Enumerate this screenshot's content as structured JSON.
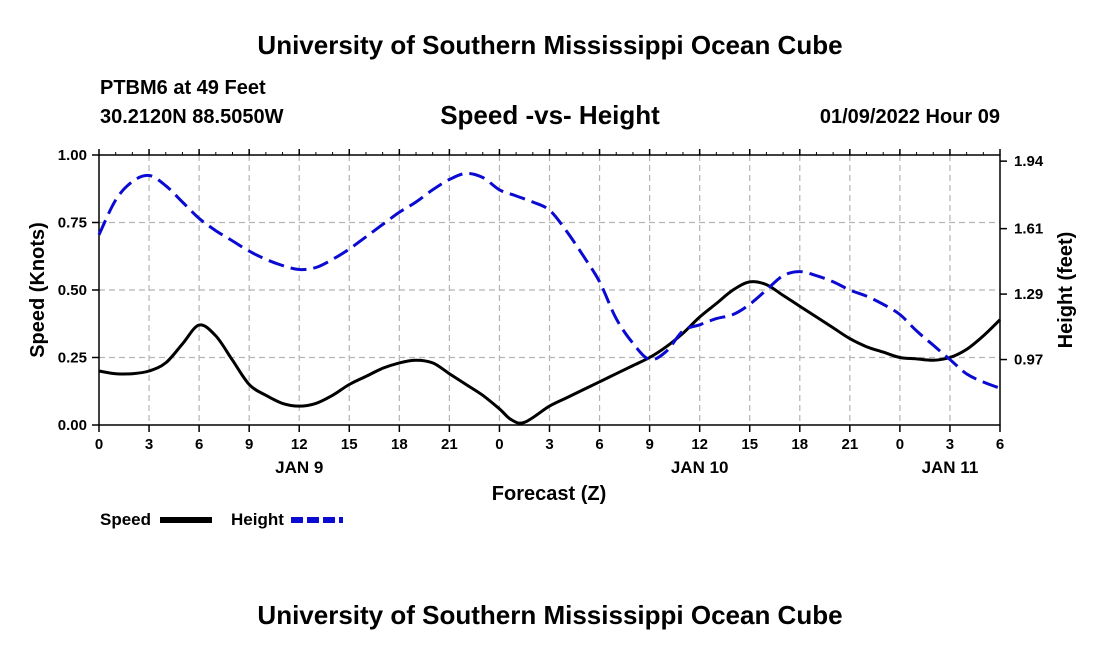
{
  "page": {
    "title_top": "University of Southern Mississippi Ocean Cube",
    "title_bottom": "University of Southern Mississippi Ocean Cube",
    "station": "PTBM6 at 49 Feet",
    "coords": "30.2120N  88.5050W",
    "datetime": "01/09/2022 Hour 09"
  },
  "colors": {
    "speed": "#000000",
    "height": "#0a0ad2",
    "grid": "#b4b4b4"
  },
  "chart_data": {
    "type": "line",
    "title": "Speed -vs- Height",
    "xlabel": "Forecast (Z)",
    "ylabel_left": "Speed (Knots)",
    "ylabel_right": "Height (feet)",
    "x_tick_labels": [
      "0",
      "3",
      "6",
      "9",
      "12",
      "15",
      "18",
      "21",
      "0",
      "3",
      "6",
      "9",
      "12",
      "15",
      "18",
      "21",
      "0",
      "3",
      "6"
    ],
    "x_tick_hours": [
      0,
      3,
      6,
      9,
      12,
      15,
      18,
      21,
      24,
      27,
      30,
      33,
      36,
      39,
      42,
      45,
      48,
      51,
      54
    ],
    "date_labels": [
      {
        "label": "JAN 9",
        "hour": 12
      },
      {
        "label": "JAN 10",
        "hour": 36
      },
      {
        "label": "JAN 11",
        "hour": 51
      }
    ],
    "xlim": [
      0,
      54
    ],
    "ylim_left": [
      0,
      1
    ],
    "y_left_ticks": [
      "0.00",
      "0.25",
      "0.50",
      "0.75",
      "1.00"
    ],
    "y_left_values": [
      0,
      0.25,
      0.5,
      0.75,
      1.0
    ],
    "ylim_right": [
      0.65,
      1.97
    ],
    "y_right_ticks": [
      "0.97",
      "1.29",
      "1.61",
      "1.94"
    ],
    "y_right_values": [
      0.97,
      1.29,
      1.61,
      1.94
    ],
    "series": [
      {
        "name": "Speed",
        "axis": "left",
        "style": "solid",
        "x": [
          0,
          1,
          2,
          3,
          4,
          5,
          6,
          7,
          8,
          9,
          10,
          11,
          12,
          13,
          14,
          15,
          16,
          17,
          18,
          19,
          20,
          21,
          22,
          23,
          24,
          24.7,
          25.5,
          27,
          28,
          29,
          30,
          31,
          32,
          33,
          34,
          35,
          36,
          37,
          38,
          39,
          40,
          41,
          42,
          43,
          44,
          45,
          46,
          47,
          48,
          49,
          50,
          51,
          52,
          53,
          54
        ],
        "values": [
          0.2,
          0.19,
          0.19,
          0.2,
          0.23,
          0.3,
          0.37,
          0.33,
          0.24,
          0.15,
          0.11,
          0.08,
          0.07,
          0.08,
          0.11,
          0.15,
          0.18,
          0.21,
          0.23,
          0.24,
          0.23,
          0.19,
          0.15,
          0.11,
          0.06,
          0.02,
          0.01,
          0.07,
          0.1,
          0.13,
          0.16,
          0.19,
          0.22,
          0.25,
          0.29,
          0.34,
          0.4,
          0.45,
          0.5,
          0.53,
          0.52,
          0.48,
          0.44,
          0.4,
          0.36,
          0.32,
          0.29,
          0.27,
          0.25,
          0.245,
          0.24,
          0.25,
          0.28,
          0.33,
          0.39
        ]
      },
      {
        "name": "Height",
        "axis": "right",
        "style": "dashed",
        "x": [
          0,
          1,
          2,
          3,
          4,
          5,
          6,
          7,
          8,
          9,
          10,
          11,
          12,
          13,
          14,
          15,
          16,
          17,
          18,
          19,
          20,
          21,
          22,
          23,
          24,
          25,
          26,
          27,
          28,
          29,
          30,
          31,
          32,
          33,
          34,
          35,
          36,
          37,
          38,
          39,
          40,
          41,
          42,
          43,
          44,
          45,
          46,
          47,
          48,
          49,
          50,
          51,
          52,
          53,
          54
        ],
        "values": [
          1.58,
          1.75,
          1.84,
          1.87,
          1.82,
          1.74,
          1.66,
          1.6,
          1.55,
          1.5,
          1.46,
          1.43,
          1.41,
          1.42,
          1.46,
          1.51,
          1.57,
          1.63,
          1.69,
          1.74,
          1.8,
          1.85,
          1.88,
          1.86,
          1.8,
          1.77,
          1.74,
          1.7,
          1.6,
          1.48,
          1.35,
          1.17,
          1.05,
          0.97,
          1.01,
          1.11,
          1.14,
          1.17,
          1.19,
          1.24,
          1.31,
          1.38,
          1.4,
          1.38,
          1.35,
          1.31,
          1.28,
          1.24,
          1.19,
          1.11,
          1.04,
          0.97,
          0.9,
          0.86,
          0.83
        ]
      }
    ],
    "legend": [
      {
        "name": "Speed",
        "style": "solid"
      },
      {
        "name": "Height",
        "style": "dashed"
      }
    ]
  }
}
